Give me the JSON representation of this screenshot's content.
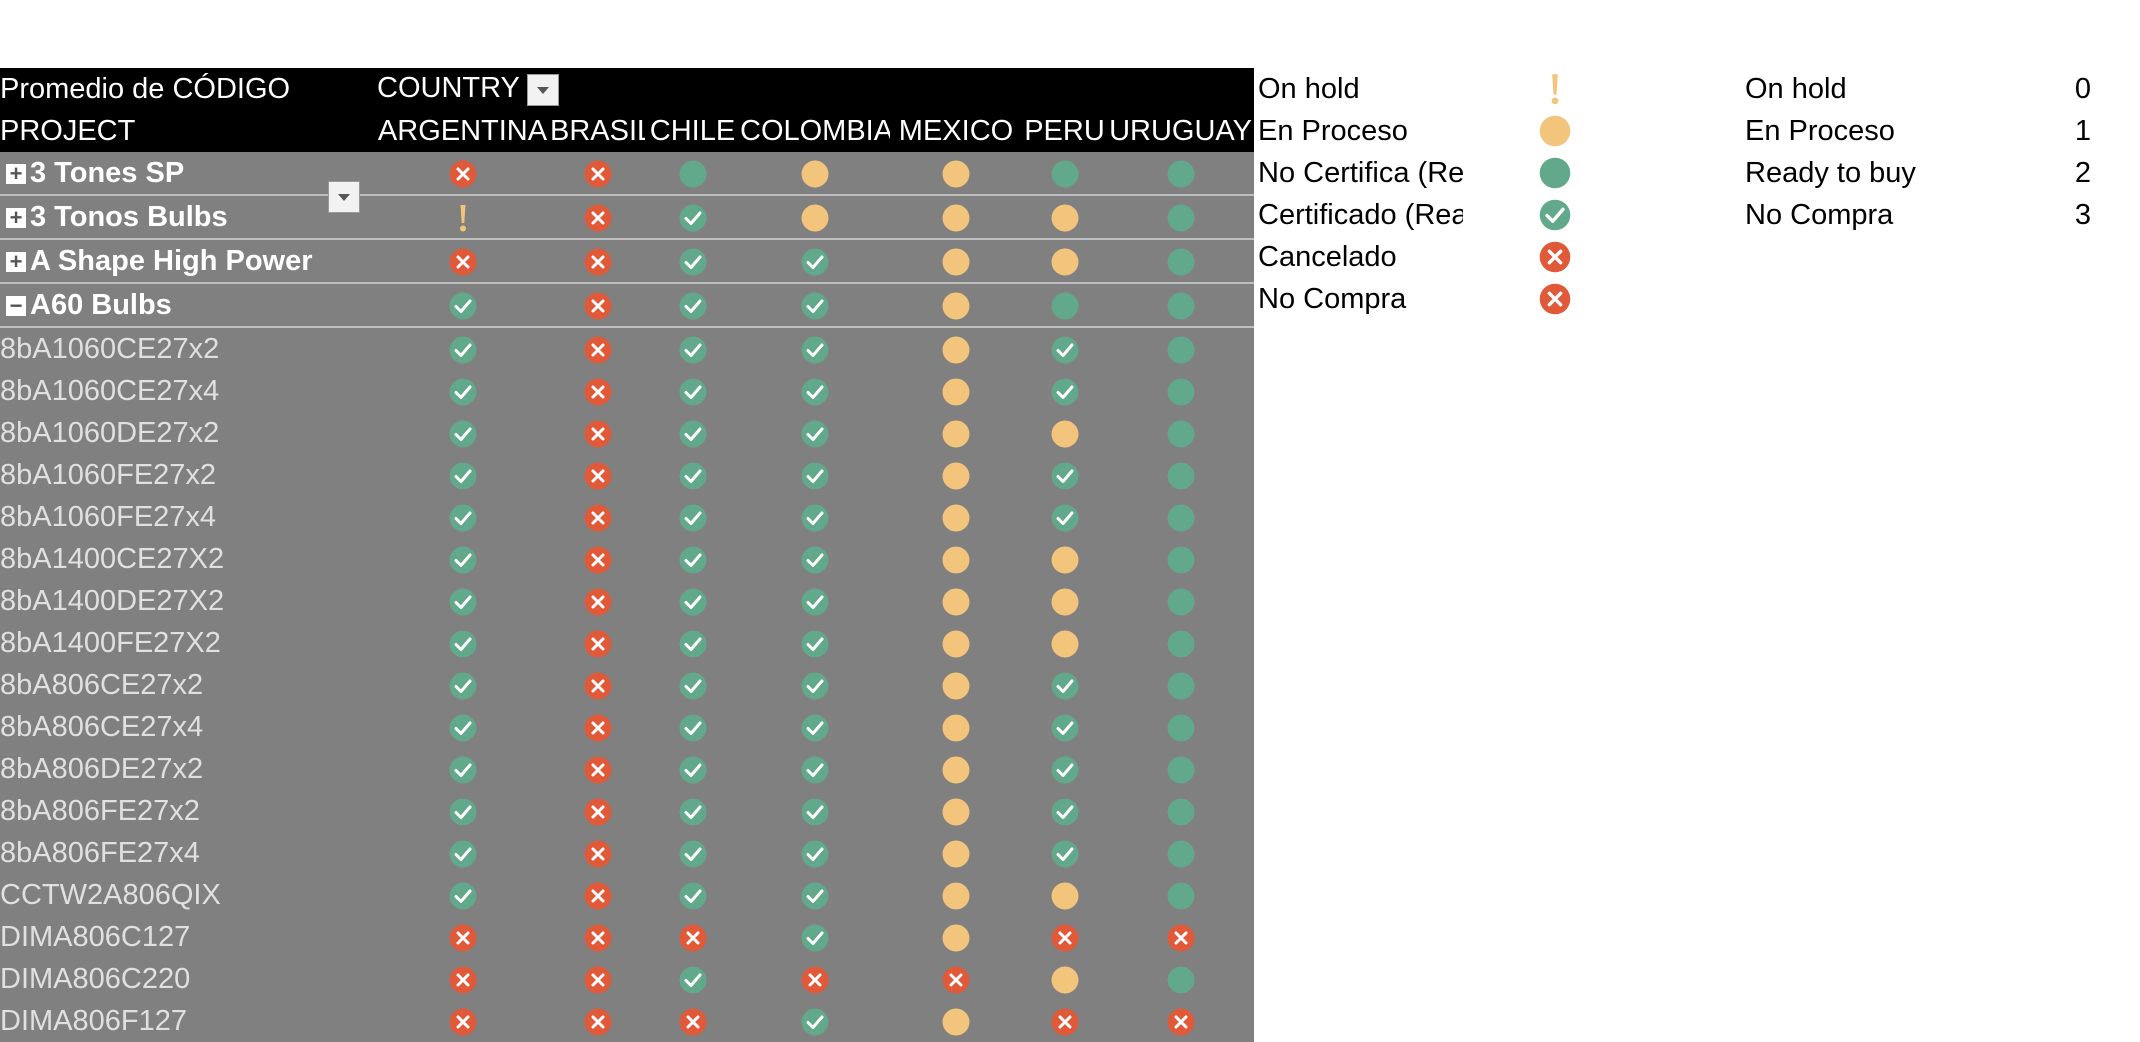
{
  "pivot": {
    "measure_label": "Promedio de CÓDIGO",
    "column_field": "COUNTRY",
    "row_field": "PROJECT",
    "countries": [
      "ARGENTINA",
      "BRASIL",
      "CHILE",
      "COLOMBIA",
      "MEXICO",
      "PERU",
      "URUGUAY"
    ],
    "groups": [
      {
        "label": "3 Tones SP",
        "toggle": "+",
        "status": [
          "cancel",
          "cancel",
          "circle-green",
          "circle-orange",
          "circle-orange",
          "circle-green",
          "circle-green"
        ]
      },
      {
        "label": "3 Tonos Bulbs",
        "toggle": "+",
        "status": [
          "exclaim",
          "cancel",
          "check",
          "circle-orange",
          "circle-orange",
          "circle-orange",
          "circle-green"
        ]
      },
      {
        "label": "A Shape High Power",
        "toggle": "+",
        "status": [
          "cancel",
          "cancel",
          "check",
          "check",
          "circle-orange",
          "circle-orange",
          "circle-green"
        ]
      },
      {
        "label": "A60 Bulbs",
        "toggle": "−",
        "status": [
          "check",
          "cancel",
          "check",
          "check",
          "circle-orange",
          "circle-green",
          "circle-green"
        ]
      }
    ],
    "items": [
      {
        "label": "8bA1060CE27x2",
        "status": [
          "check",
          "cancel",
          "check",
          "check",
          "circle-orange",
          "check",
          "circle-green"
        ]
      },
      {
        "label": "8bA1060CE27x4",
        "status": [
          "check",
          "cancel",
          "check",
          "check",
          "circle-orange",
          "check",
          "circle-green"
        ]
      },
      {
        "label": "8bA1060DE27x2",
        "status": [
          "check",
          "cancel",
          "check",
          "check",
          "circle-orange",
          "circle-orange",
          "circle-green"
        ]
      },
      {
        "label": "8bA1060FE27x2",
        "status": [
          "check",
          "cancel",
          "check",
          "check",
          "circle-orange",
          "check",
          "circle-green"
        ]
      },
      {
        "label": "8bA1060FE27x4",
        "status": [
          "check",
          "cancel",
          "check",
          "check",
          "circle-orange",
          "check",
          "circle-green"
        ]
      },
      {
        "label": "8bA1400CE27X2",
        "status": [
          "check",
          "cancel",
          "check",
          "check",
          "circle-orange",
          "circle-orange",
          "circle-green"
        ]
      },
      {
        "label": "8bA1400DE27X2",
        "status": [
          "check",
          "cancel",
          "check",
          "check",
          "circle-orange",
          "circle-orange",
          "circle-green"
        ]
      },
      {
        "label": "8bA1400FE27X2",
        "status": [
          "check",
          "cancel",
          "check",
          "check",
          "circle-orange",
          "circle-orange",
          "circle-green"
        ]
      },
      {
        "label": "8bA806CE27x2",
        "status": [
          "check",
          "cancel",
          "check",
          "check",
          "circle-orange",
          "check",
          "circle-green"
        ]
      },
      {
        "label": "8bA806CE27x4",
        "status": [
          "check",
          "cancel",
          "check",
          "check",
          "circle-orange",
          "check",
          "circle-green"
        ]
      },
      {
        "label": "8bA806DE27x2",
        "status": [
          "check",
          "cancel",
          "check",
          "check",
          "circle-orange",
          "check",
          "circle-green"
        ]
      },
      {
        "label": "8bA806FE27x2",
        "status": [
          "check",
          "cancel",
          "check",
          "check",
          "circle-orange",
          "check",
          "circle-green"
        ]
      },
      {
        "label": "8bA806FE27x4",
        "status": [
          "check",
          "cancel",
          "check",
          "check",
          "circle-orange",
          "check",
          "circle-green"
        ]
      },
      {
        "label": "CCTW2A806QIX",
        "status": [
          "check",
          "cancel",
          "check",
          "check",
          "circle-orange",
          "circle-orange",
          "circle-green"
        ]
      },
      {
        "label": "DIMA806C127",
        "status": [
          "cancel",
          "cancel",
          "cancel",
          "check",
          "circle-orange",
          "cancel",
          "cancel"
        ]
      },
      {
        "label": "DIMA806C220",
        "status": [
          "cancel",
          "cancel",
          "check",
          "cancel",
          "cancel",
          "circle-orange",
          "circle-green"
        ]
      },
      {
        "label": "DIMA806F127",
        "status": [
          "cancel",
          "cancel",
          "cancel",
          "check",
          "circle-orange",
          "cancel",
          "cancel"
        ]
      }
    ]
  },
  "icon_legend": [
    {
      "label": "On hold",
      "icon": "exclaim"
    },
    {
      "label": "En Proceso",
      "icon": "circle-orange"
    },
    {
      "label": "No Certifica (Re",
      "icon": "circle-green"
    },
    {
      "label": "Certificado (Rea",
      "icon": "check"
    },
    {
      "label": "Cancelado",
      "icon": "cancel"
    },
    {
      "label": "No Compra",
      "icon": "cancel"
    }
  ],
  "value_legend": [
    {
      "label": "On hold",
      "value": "0"
    },
    {
      "label": "En Proceso",
      "value": "1"
    },
    {
      "label": "Ready to buy",
      "value": "2"
    },
    {
      "label": "No Compra",
      "value": "3"
    }
  ],
  "colors": {
    "header_bg": "#000000",
    "body_bg": "#808080",
    "orange": "#f2c47c",
    "green": "#62a88b",
    "red": "#e05a3a"
  }
}
